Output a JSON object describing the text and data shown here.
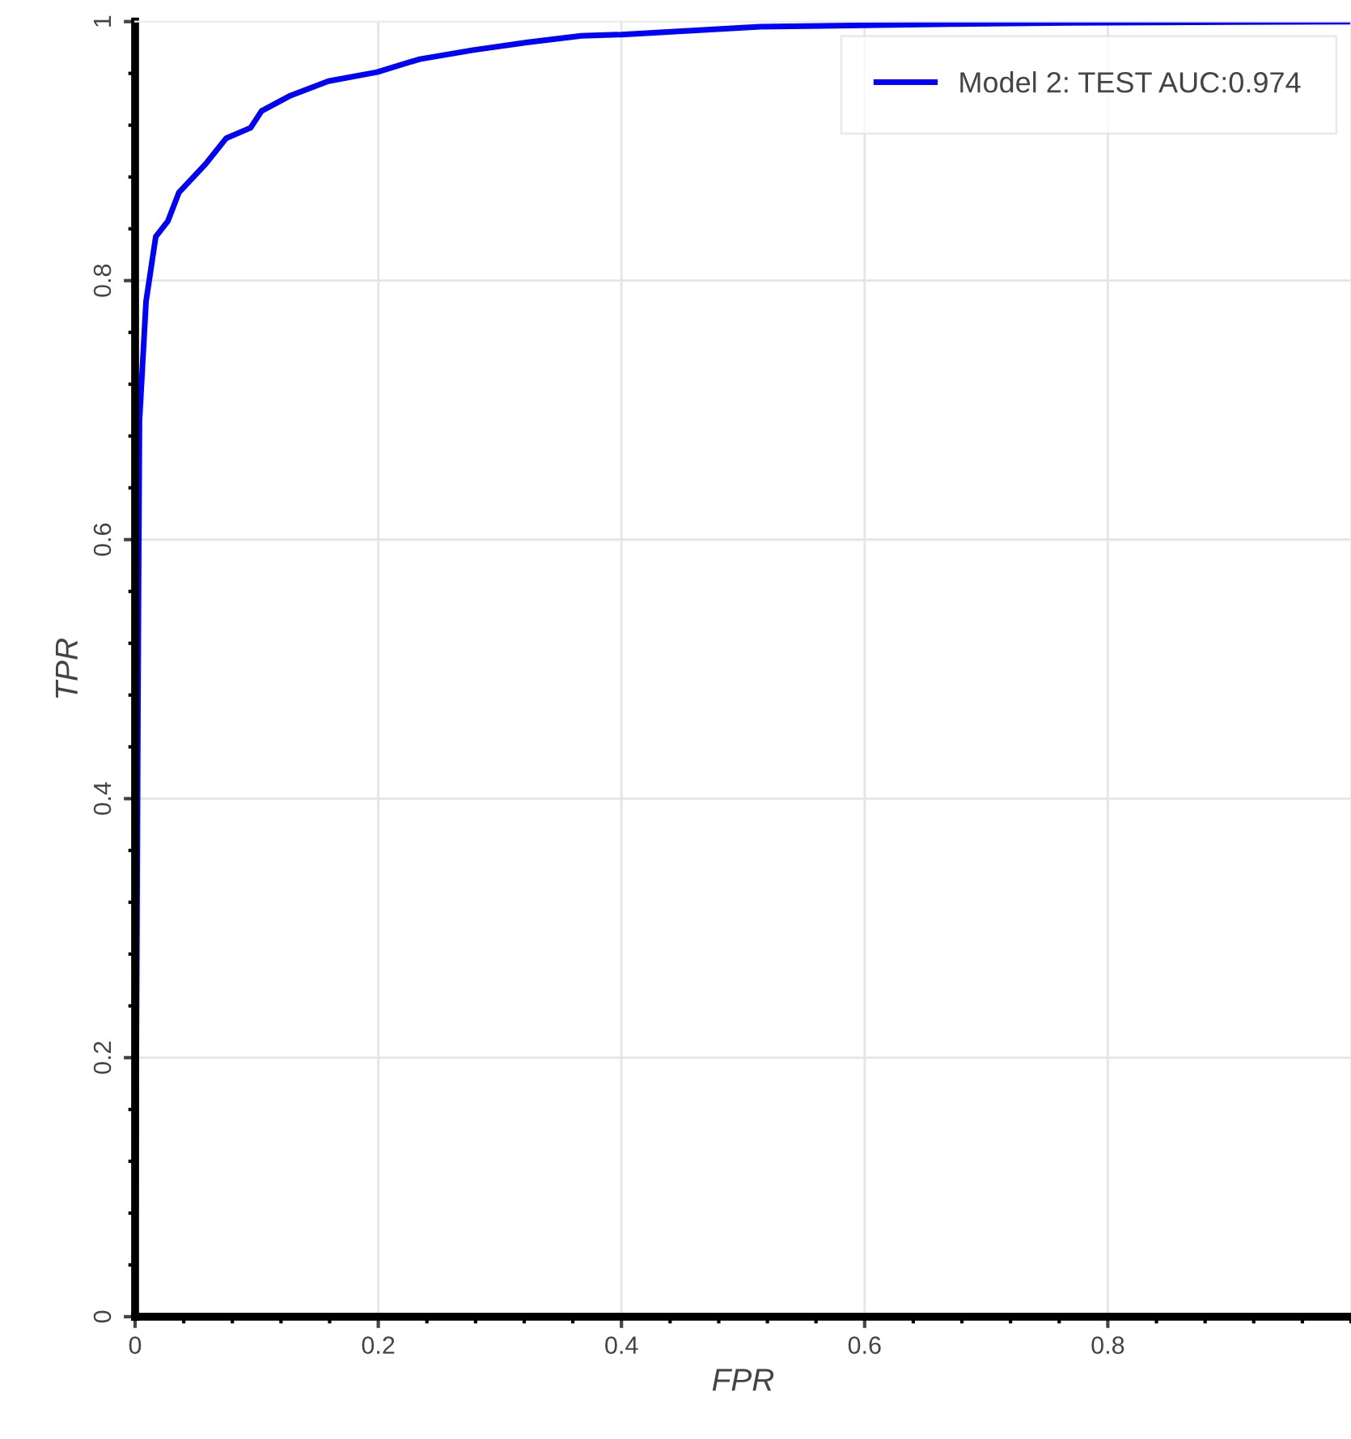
{
  "chart_data": {
    "type": "line",
    "xlabel": "FPR",
    "ylabel": "TPR",
    "xlim": [
      0,
      1
    ],
    "ylim": [
      0,
      1
    ],
    "xticks": [
      0,
      0.2,
      0.4,
      0.6,
      0.8
    ],
    "yticks": [
      0,
      0.2,
      0.4,
      0.6,
      0.8,
      1
    ],
    "grid": true,
    "legend": "top right",
    "line_style": "solid",
    "marker": "none",
    "series": [
      {
        "name": "Model 2: TEST AUC:0.974",
        "color": "#0000ff",
        "x": [
          0,
          0.002,
          0.003,
          0.0036,
          0.009,
          0.017,
          0.027,
          0.036,
          0.058,
          0.075,
          0.095,
          0.104,
          0.128,
          0.159,
          0.199,
          0.234,
          0.278,
          0.323,
          0.367,
          0.4,
          0.514,
          0.67,
          0.767,
          1
        ],
        "values": [
          0,
          0.4,
          0.6,
          0.692,
          0.784,
          0.834,
          0.846,
          0.868,
          0.89,
          0.91,
          0.918,
          0.931,
          0.943,
          0.954,
          0.961,
          0.971,
          0.978,
          0.984,
          0.989,
          0.99,
          0.996,
          0.998,
          0.999,
          1
        ]
      }
    ]
  }
}
